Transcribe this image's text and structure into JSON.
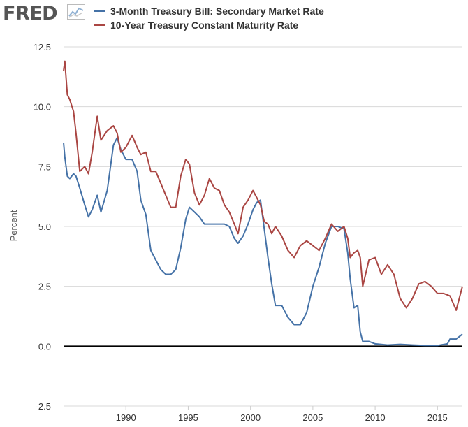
{
  "logo": {
    "text": "FRED",
    "icon": "line-chart-icon"
  },
  "colors": {
    "bill": "#4572a7",
    "note": "#aa4643",
    "grid": "#d8d8d8",
    "zero": "#000000"
  },
  "chart_data": {
    "type": "line",
    "ylabel": "Percent",
    "ylim": [
      -2.5,
      12.5
    ],
    "yticks": [
      -2.5,
      0.0,
      2.5,
      5.0,
      7.5,
      10.0,
      12.5
    ],
    "ytick_labels": [
      "-2.5",
      "0.0",
      "2.5",
      "5.0",
      "7.5",
      "10.0",
      "12.5"
    ],
    "xlim": [
      1985.0,
      2017.0
    ],
    "xticks": [
      1990,
      1995,
      2000,
      2005,
      2010,
      2015
    ],
    "xtick_labels": [
      "1990",
      "1995",
      "2000",
      "2005",
      "2010",
      "2015"
    ],
    "grid": "horizontal",
    "legend_position": "top-left",
    "series": [
      {
        "name": "3-Month Treasury Bill: Secondary Market Rate",
        "color": "#4572a7",
        "x": [
          1985.0,
          1985.1,
          1985.3,
          1985.5,
          1985.8,
          1986.0,
          1986.3,
          1986.7,
          1987.0,
          1987.3,
          1987.7,
          1988.0,
          1988.5,
          1989.0,
          1989.3,
          1989.6,
          1990.0,
          1990.5,
          1990.9,
          1991.2,
          1991.6,
          1992.0,
          1992.4,
          1992.8,
          1993.2,
          1993.6,
          1994.0,
          1994.4,
          1994.8,
          1995.1,
          1995.5,
          1995.9,
          1996.3,
          1996.7,
          1997.1,
          1997.5,
          1997.9,
          1998.3,
          1998.7,
          1999.0,
          1999.4,
          1999.8,
          2000.2,
          2000.5,
          2000.8,
          2001.1,
          2001.4,
          2001.7,
          2002.0,
          2002.5,
          2003.0,
          2003.5,
          2004.0,
          2004.5,
          2005.0,
          2005.5,
          2006.0,
          2006.5,
          2007.0,
          2007.5,
          2007.8,
          2008.0,
          2008.3,
          2008.6,
          2008.8,
          2009.0,
          2009.5,
          2010.0,
          2011.0,
          2012.0,
          2013.0,
          2014.0,
          2015.0,
          2015.8,
          2016.0,
          2016.5,
          2017.0
        ],
        "y": [
          8.5,
          7.9,
          7.1,
          7.0,
          7.2,
          7.1,
          6.6,
          5.9,
          5.4,
          5.7,
          6.3,
          5.6,
          6.5,
          8.4,
          8.7,
          8.2,
          7.8,
          7.8,
          7.3,
          6.1,
          5.5,
          4.0,
          3.6,
          3.2,
          3.0,
          3.0,
          3.2,
          4.1,
          5.3,
          5.8,
          5.6,
          5.4,
          5.1,
          5.1,
          5.1,
          5.1,
          5.1,
          5.0,
          4.5,
          4.3,
          4.6,
          5.1,
          5.7,
          6.0,
          6.1,
          4.9,
          3.7,
          2.6,
          1.7,
          1.7,
          1.2,
          0.9,
          0.9,
          1.4,
          2.5,
          3.3,
          4.3,
          5.0,
          5.0,
          4.9,
          3.9,
          2.8,
          1.6,
          1.7,
          0.6,
          0.2,
          0.2,
          0.1,
          0.05,
          0.08,
          0.05,
          0.03,
          0.03,
          0.1,
          0.3,
          0.3,
          0.5
        ]
      },
      {
        "name": "10-Year Treasury Constant Maturity Rate",
        "color": "#aa4643",
        "x": [
          1985.0,
          1985.1,
          1985.3,
          1985.5,
          1985.8,
          1986.0,
          1986.3,
          1986.7,
          1987.0,
          1987.3,
          1987.7,
          1988.0,
          1988.5,
          1989.0,
          1989.3,
          1989.6,
          1990.0,
          1990.5,
          1990.9,
          1991.2,
          1991.6,
          1992.0,
          1992.4,
          1992.8,
          1993.2,
          1993.6,
          1994.0,
          1994.4,
          1994.8,
          1995.1,
          1995.5,
          1995.9,
          1996.3,
          1996.7,
          1997.1,
          1997.5,
          1997.9,
          1998.3,
          1998.7,
          1999.0,
          1999.4,
          1999.8,
          2000.2,
          2000.5,
          2000.8,
          2001.1,
          2001.4,
          2001.7,
          2002.0,
          2002.5,
          2003.0,
          2003.5,
          2004.0,
          2004.5,
          2005.0,
          2005.5,
          2006.0,
          2006.5,
          2007.0,
          2007.5,
          2007.8,
          2008.0,
          2008.3,
          2008.6,
          2008.8,
          2009.0,
          2009.5,
          2010.0,
          2010.5,
          2011.0,
          2011.5,
          2012.0,
          2012.5,
          2013.0,
          2013.5,
          2014.0,
          2014.5,
          2015.0,
          2015.5,
          2016.0,
          2016.5,
          2017.0
        ],
        "y": [
          11.5,
          11.9,
          10.5,
          10.3,
          9.8,
          8.9,
          7.3,
          7.5,
          7.2,
          8.1,
          9.6,
          8.6,
          9.0,
          9.2,
          8.9,
          8.1,
          8.3,
          8.8,
          8.3,
          8.0,
          8.1,
          7.3,
          7.3,
          6.8,
          6.3,
          5.8,
          5.8,
          7.1,
          7.8,
          7.6,
          6.4,
          5.9,
          6.3,
          7.0,
          6.6,
          6.5,
          5.9,
          5.6,
          5.1,
          4.7,
          5.8,
          6.1,
          6.5,
          6.2,
          5.9,
          5.2,
          5.1,
          4.7,
          5.0,
          4.6,
          4.0,
          3.7,
          4.2,
          4.4,
          4.2,
          4.0,
          4.5,
          5.1,
          4.8,
          5.0,
          4.5,
          3.7,
          3.9,
          4.0,
          3.7,
          2.5,
          3.6,
          3.7,
          3.0,
          3.4,
          3.0,
          2.0,
          1.6,
          2.0,
          2.6,
          2.7,
          2.5,
          2.2,
          2.2,
          2.1,
          1.5,
          2.5
        ]
      }
    ]
  }
}
